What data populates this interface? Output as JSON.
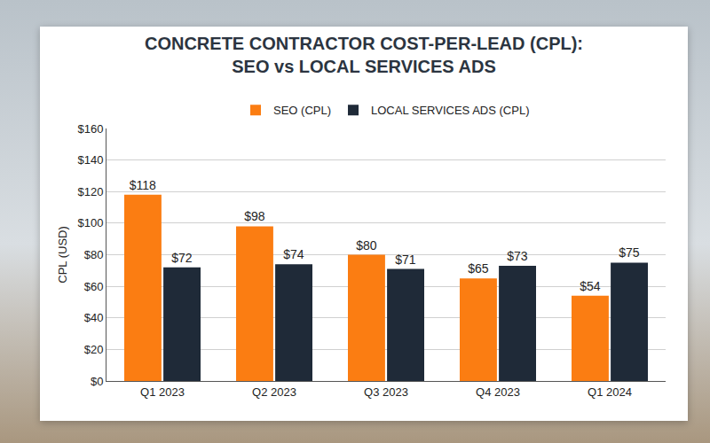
{
  "chart_data": {
    "type": "bar",
    "title": "CONCRETE CONTRACTOR COST-PER-LEAD (CPL): SEO vs LOCAL SERVICES ADS",
    "y_label": "CPL (USD)",
    "categories": [
      "Q1 2023",
      "Q2 2023",
      "Q3 2023",
      "Q4 2023",
      "Q1 2024"
    ],
    "series": [
      {
        "name": "SEO (CPL)",
        "color": "#fb7d12",
        "values": [
          118,
          98,
          80,
          65,
          54
        ],
        "value_labels": [
          "$118",
          "$98",
          "$80",
          "$65",
          "$54"
        ]
      },
      {
        "name": "LOCAL SERVICES ADS (CPL)",
        "color": "#1f2a38",
        "values": [
          72,
          74,
          71,
          73,
          75
        ],
        "value_labels": [
          "$72",
          "$74",
          "$71",
          "$73",
          "$75"
        ]
      }
    ],
    "ylim": [
      0,
      160
    ],
    "yticks": [
      {
        "value": 0,
        "label": "$0"
      },
      {
        "value": 20,
        "label": "$20"
      },
      {
        "value": 40,
        "label": "$40"
      },
      {
        "value": 60,
        "label": "$60"
      },
      {
        "value": 80,
        "label": "$80"
      },
      {
        "value": 100,
        "label": "$100"
      },
      {
        "value": 120,
        "label": "$120"
      },
      {
        "value": 140,
        "label": "$140"
      },
      {
        "value": 160,
        "label": "$160"
      }
    ],
    "grid": true,
    "legend": "top",
    "data_labels": true
  }
}
